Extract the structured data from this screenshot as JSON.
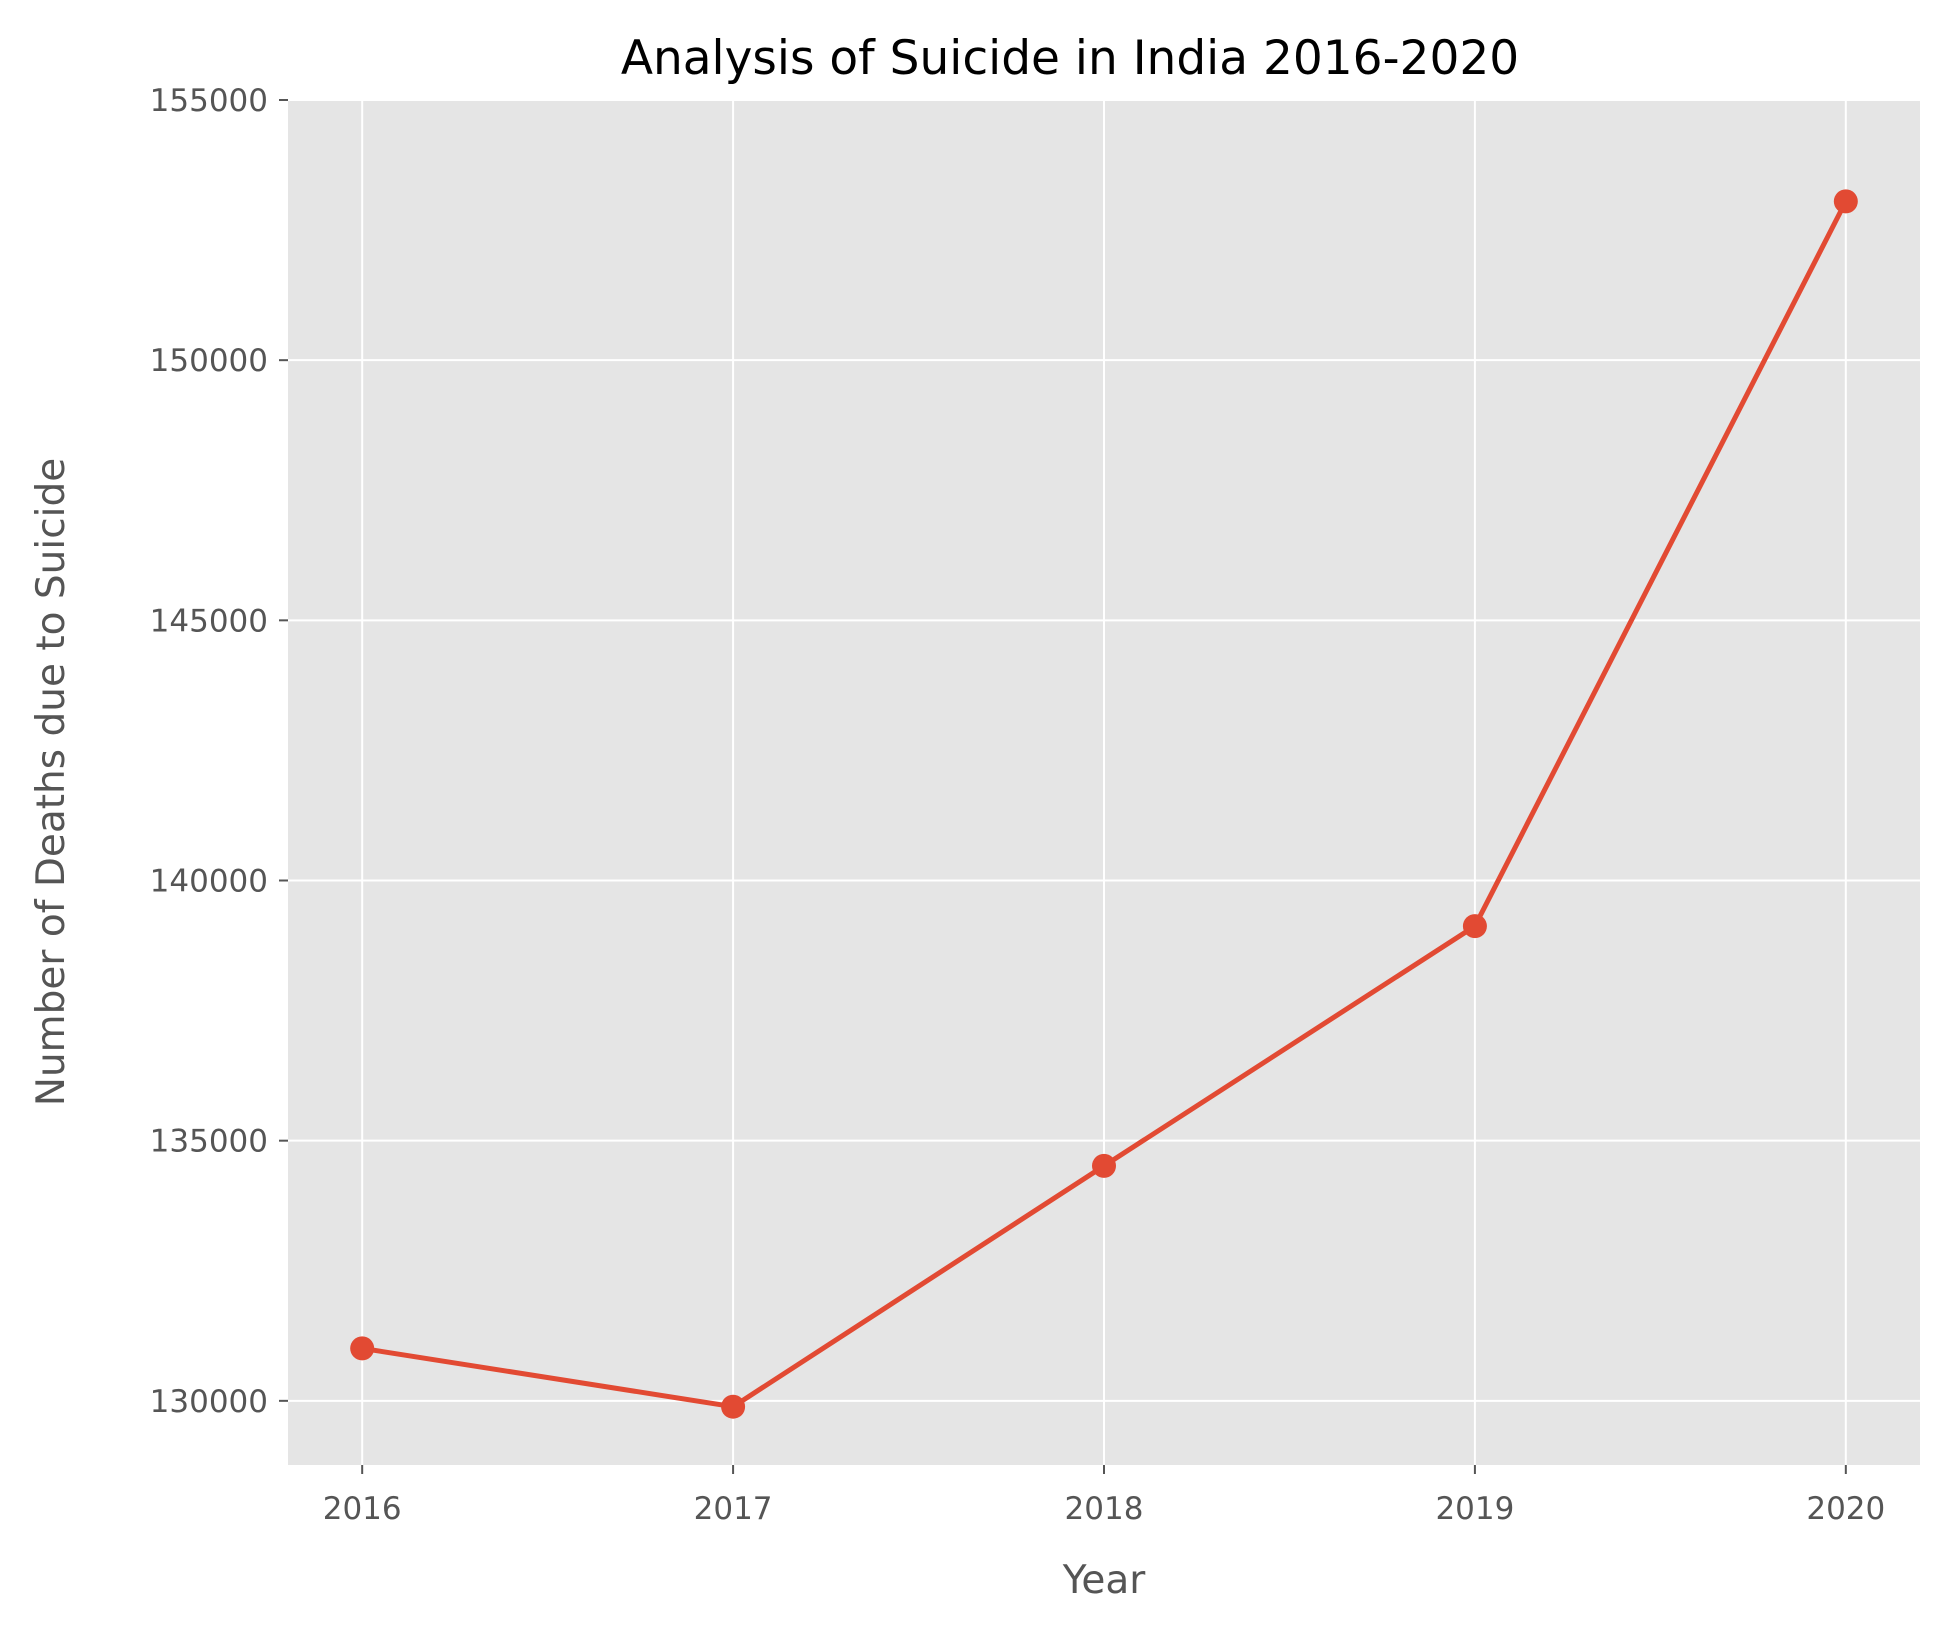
{
  "chart_data": {
    "type": "line",
    "title": "Analysis of Suicide in India 2016-2020",
    "xlabel": "Year",
    "ylabel": "Number of Deaths due to Suicide",
    "x": [
      2016,
      2017,
      2018,
      2019,
      2020
    ],
    "x_tick_labels": [
      "2016",
      "2017",
      "2018",
      "2019",
      "2020"
    ],
    "series": [
      {
        "values": [
          131008,
          129887,
          134516,
          139123,
          153052
        ],
        "color": "#E24A33",
        "marker": "circle"
      }
    ],
    "y_ticks": [
      130000,
      135000,
      140000,
      145000,
      150000,
      155000
    ],
    "y_tick_labels": [
      "130000",
      "135000",
      "140000",
      "145000",
      "150000",
      "155000"
    ],
    "ylim": [
      128767,
      155000
    ],
    "xlim": [
      2015.8,
      2020.2
    ],
    "grid": true,
    "style": {
      "plot_background": "#E5E5E5",
      "grid_color": "#FFFFFF",
      "text_color": "#555555"
    }
  }
}
